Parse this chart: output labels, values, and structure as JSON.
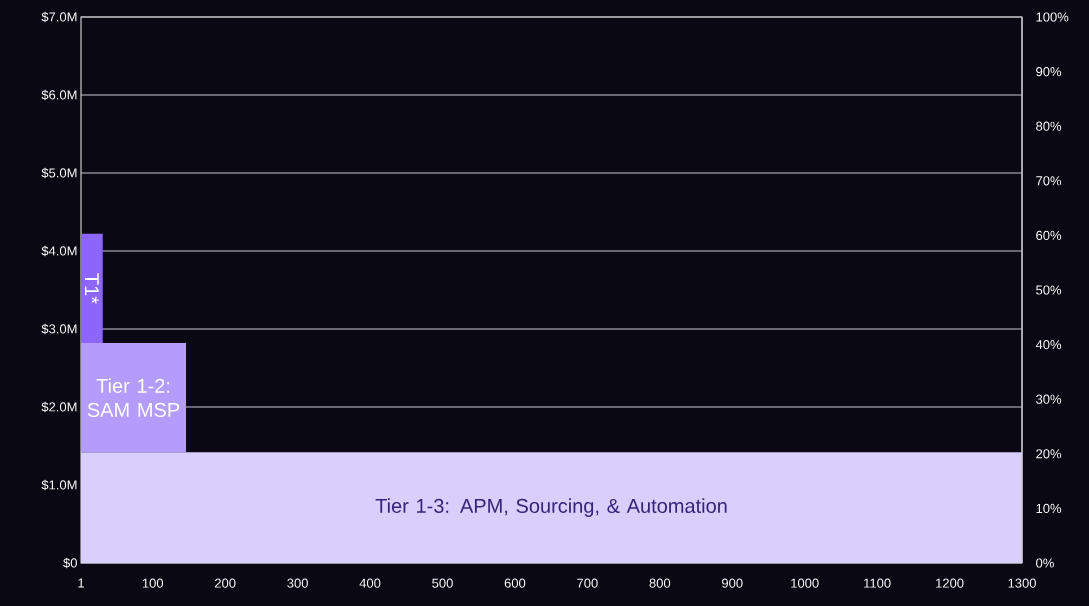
{
  "chart_data": {
    "type": "area",
    "stacked": true,
    "xlim": [
      1,
      1300
    ],
    "xticks": [
      1,
      100,
      200,
      300,
      400,
      500,
      600,
      700,
      800,
      900,
      1000,
      1100,
      1200,
      1300
    ],
    "ylim": [
      0,
      7
    ],
    "yticks": [
      {
        "value": 0,
        "label": "$0"
      },
      {
        "value": 1,
        "label": "$1.0M"
      },
      {
        "value": 2,
        "label": "$2.0M"
      },
      {
        "value": 3,
        "label": "$3.0M"
      },
      {
        "value": 4,
        "label": "$4.0M"
      },
      {
        "value": 5,
        "label": "$5.0M"
      },
      {
        "value": 6,
        "label": "$6.0M"
      },
      {
        "value": 7,
        "label": "$7.0M"
      }
    ],
    "y2lim": [
      0,
      100
    ],
    "y2ticks": [
      {
        "value": 0,
        "label": "0%"
      },
      {
        "value": 10,
        "label": "10%"
      },
      {
        "value": 20,
        "label": "20%"
      },
      {
        "value": 30,
        "label": "30%"
      },
      {
        "value": 40,
        "label": "40%"
      },
      {
        "value": 50,
        "label": "50%"
      },
      {
        "value": 60,
        "label": "60%"
      },
      {
        "value": 70,
        "label": "70%"
      },
      {
        "value": 80,
        "label": "80%"
      },
      {
        "value": 90,
        "label": "90%"
      },
      {
        "value": 100,
        "label": "100%"
      }
    ],
    "grid": "y",
    "series": [
      {
        "name": "Tier 1-3: APM, Sourcing, & Automation",
        "color": "#d9cffd",
        "x": [
          1,
          1300
        ],
        "values": [
          1.42,
          1.42
        ]
      },
      {
        "name": "Tier 1-2: SAM MSP",
        "color": "#b49cfc",
        "x": [
          1,
          146
        ],
        "values": [
          1.4,
          1.4
        ]
      },
      {
        "name": "T1*",
        "color": "#8b66f8",
        "x": [
          1,
          31
        ],
        "values": [
          1.4,
          1.4
        ]
      }
    ]
  }
}
